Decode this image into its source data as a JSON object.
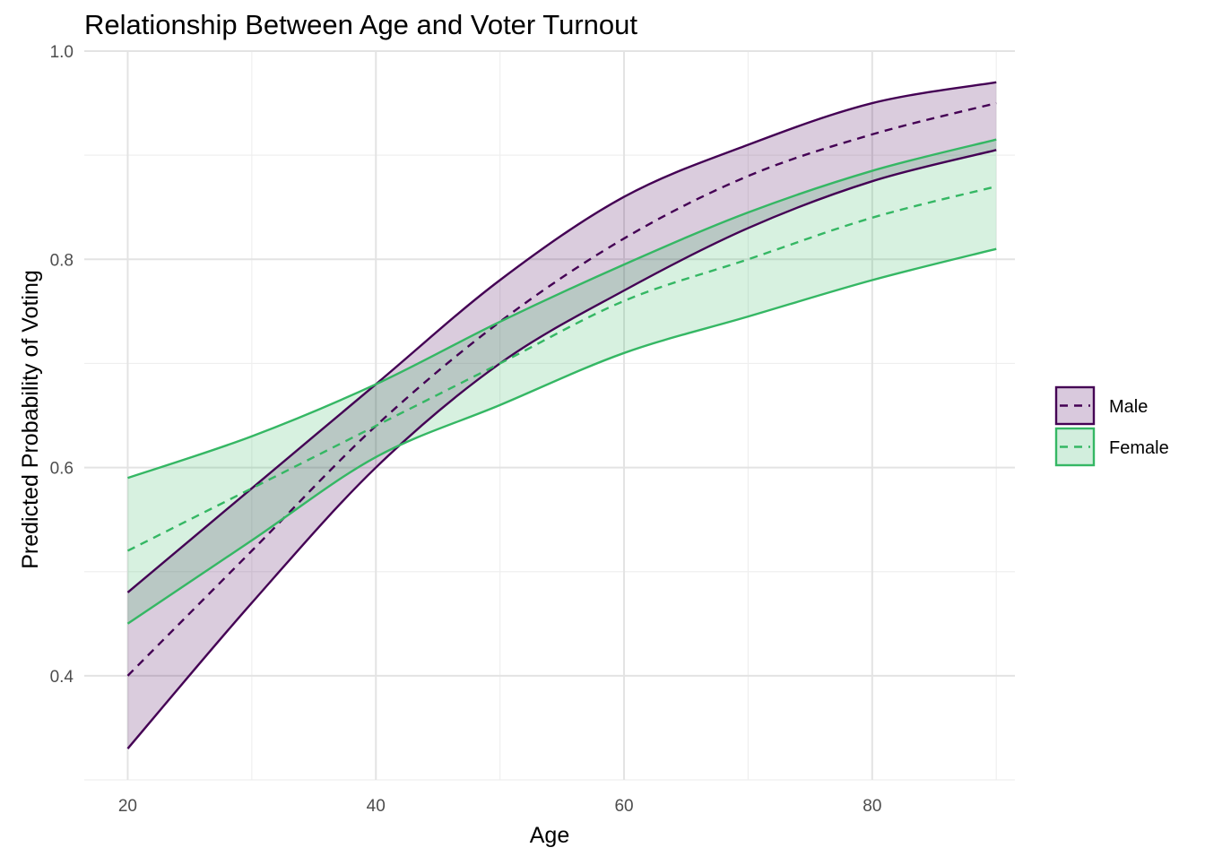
{
  "chart_data": {
    "type": "line",
    "title": "Relationship Between Age and Voter Turnout",
    "xlabel": "Age",
    "ylabel": "Predicted Probability of Voting",
    "xlim": [
      16.5,
      91.5
    ],
    "ylim": [
      0.3,
      1.0
    ],
    "x_ticks": [
      20,
      40,
      60,
      80
    ],
    "x_tick_labels": [
      "20",
      "40",
      "60",
      "80"
    ],
    "y_ticks": [
      0.4,
      0.6,
      0.8,
      1.0
    ],
    "y_tick_labels": [
      "0.4",
      "0.6",
      "0.8",
      "1.0"
    ],
    "grid": true,
    "legend_position": "right",
    "x": [
      20,
      30,
      40,
      50,
      60,
      70,
      80,
      90
    ],
    "series": [
      {
        "name": "Male",
        "color": "#440154",
        "fill": "#d9c9dd",
        "predicted": [
          0.4,
          0.52,
          0.64,
          0.74,
          0.82,
          0.88,
          0.92,
          0.95
        ],
        "lower": [
          0.33,
          0.47,
          0.6,
          0.7,
          0.77,
          0.83,
          0.875,
          0.905
        ],
        "upper": [
          0.48,
          0.58,
          0.68,
          0.78,
          0.86,
          0.91,
          0.95,
          0.97
        ]
      },
      {
        "name": "Female",
        "color": "#35b764",
        "fill": "#d2eedd",
        "predicted": [
          0.52,
          0.58,
          0.64,
          0.7,
          0.76,
          0.8,
          0.84,
          0.87
        ],
        "lower": [
          0.45,
          0.53,
          0.61,
          0.66,
          0.71,
          0.745,
          0.78,
          0.81
        ],
        "upper": [
          0.59,
          0.63,
          0.68,
          0.74,
          0.795,
          0.845,
          0.885,
          0.915
        ]
      }
    ]
  }
}
